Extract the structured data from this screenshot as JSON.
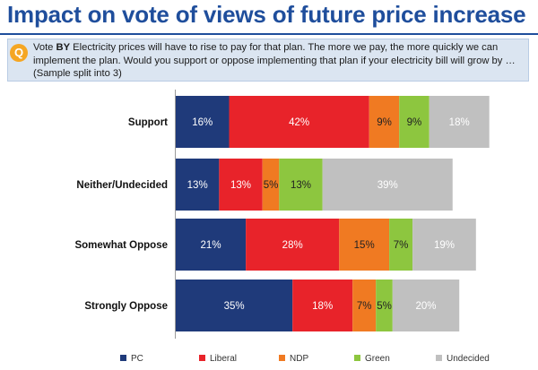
{
  "header": {
    "title": "Impact on vote of views of future price increase"
  },
  "question": {
    "badge": "Q",
    "prefix": "Vote ",
    "bold": "BY",
    "text": " Electricity prices will have to rise to pay for that plan. The more we pay, the more quickly we can implement the plan.  Would you support or oppose implementing that plan if your electricity bill will grow by … (Sample split into 3)"
  },
  "chart_data": {
    "type": "bar",
    "orientation": "horizontal",
    "stacked": true,
    "categories": [
      "Support",
      "Neither/Undecided",
      "Somewhat Oppose",
      "Strongly Oppose"
    ],
    "series": [
      {
        "name": "PC",
        "color": "#1f3a7a",
        "values": [
          16,
          13,
          21,
          35
        ]
      },
      {
        "name": "Liberal",
        "color": "#e8232a",
        "values": [
          42,
          13,
          28,
          18
        ]
      },
      {
        "name": "NDP",
        "color": "#f07a22",
        "values": [
          9,
          5,
          15,
          7
        ]
      },
      {
        "name": "Green",
        "color": "#8dc63f",
        "values": [
          9,
          13,
          7,
          5
        ]
      },
      {
        "name": "Undecided",
        "color": "#c0c0c0",
        "values": [
          18,
          39,
          19,
          20
        ]
      }
    ],
    "value_suffix": "%",
    "legend_position": "bottom",
    "grid": false
  }
}
